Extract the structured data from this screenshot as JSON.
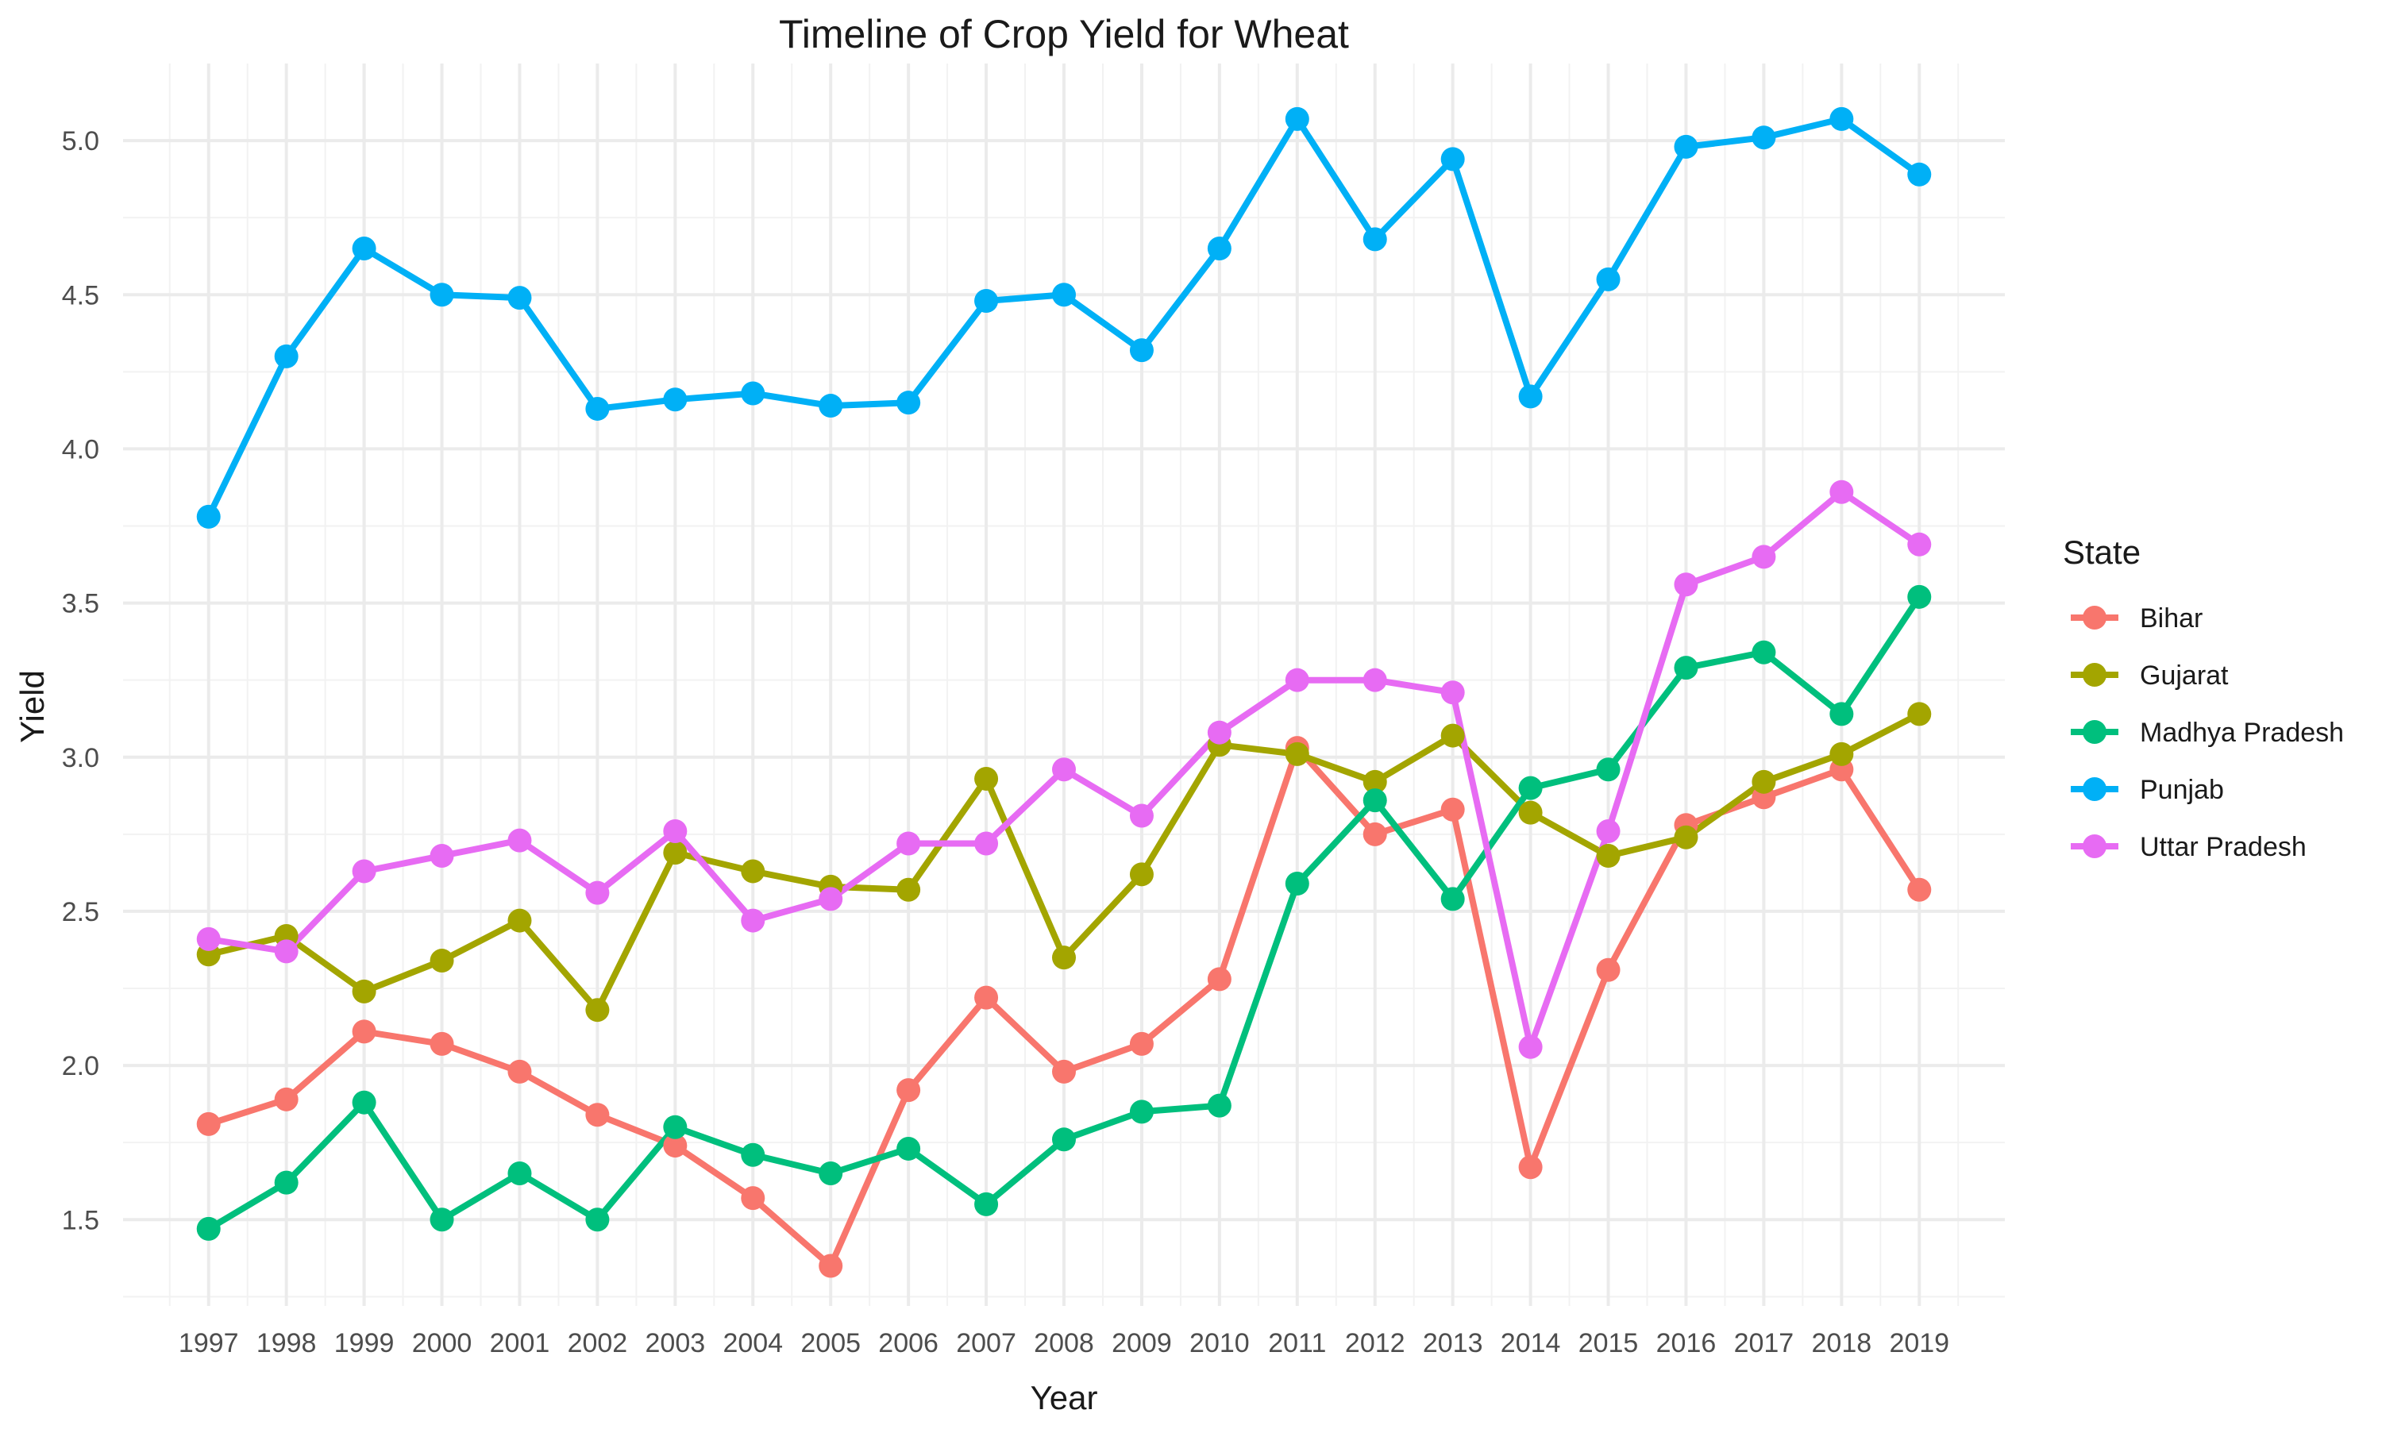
{
  "chart_data": {
    "type": "line",
    "title": "Timeline of Crop Yield for Wheat",
    "xlabel": "Year",
    "ylabel": "Yield",
    "legend_title": "State",
    "legend_position": "right",
    "grid": true,
    "x": [
      1997,
      1998,
      1999,
      2000,
      2001,
      2002,
      2003,
      2004,
      2005,
      2006,
      2007,
      2008,
      2009,
      2010,
      2011,
      2012,
      2013,
      2014,
      2015,
      2016,
      2017,
      2018,
      2019
    ],
    "x_tick_labels": [
      "1997",
      "1998",
      "1999",
      "2000",
      "2001",
      "2002",
      "2003",
      "2004",
      "2005",
      "2006",
      "2007",
      "2008",
      "2009",
      "2010",
      "2011",
      "2012",
      "2013",
      "2014",
      "2015",
      "2016",
      "2017",
      "2018",
      "2019"
    ],
    "xlim": [
      1995.9,
      2020.1
    ],
    "ylim": [
      1.22,
      5.25
    ],
    "y_ticks": [
      1.5,
      2.0,
      2.5,
      3.0,
      3.5,
      4.0,
      4.5,
      5.0
    ],
    "y_tick_labels": [
      "1.5",
      "2.0",
      "2.5",
      "3.0",
      "3.5",
      "4.0",
      "4.5",
      "5.0"
    ],
    "series": [
      {
        "name": "Bihar",
        "color": "#F8766D",
        "values": [
          1.81,
          1.89,
          2.11,
          2.07,
          1.98,
          1.84,
          1.74,
          1.57,
          1.35,
          1.92,
          2.22,
          1.98,
          2.07,
          2.28,
          3.03,
          2.75,
          2.83,
          1.67,
          2.31,
          2.78,
          2.87,
          2.96,
          2.57
        ]
      },
      {
        "name": "Gujarat",
        "color": "#A3A500",
        "values": [
          2.36,
          2.42,
          2.24,
          2.34,
          2.47,
          2.18,
          2.69,
          2.63,
          2.58,
          2.57,
          2.93,
          2.35,
          2.62,
          3.04,
          3.01,
          2.92,
          3.07,
          2.82,
          2.68,
          2.74,
          2.92,
          3.01,
          3.14
        ]
      },
      {
        "name": "Madhya Pradesh",
        "color": "#00BF7D",
        "values": [
          1.47,
          1.62,
          1.88,
          1.5,
          1.65,
          1.5,
          1.8,
          1.71,
          1.65,
          1.73,
          1.55,
          1.76,
          1.85,
          1.87,
          2.59,
          2.86,
          2.54,
          2.9,
          2.96,
          3.29,
          3.34,
          3.14,
          3.52
        ]
      },
      {
        "name": "Punjab",
        "color": "#00B0F6",
        "values": [
          3.78,
          4.3,
          4.65,
          4.5,
          4.49,
          4.13,
          4.16,
          4.18,
          4.14,
          4.15,
          4.48,
          4.5,
          4.32,
          4.65,
          5.07,
          4.68,
          4.94,
          4.17,
          4.55,
          4.98,
          5.01,
          5.07,
          4.89
        ]
      },
      {
        "name": "Uttar Pradesh",
        "color": "#E76BF3",
        "values": [
          2.41,
          2.37,
          2.63,
          2.68,
          2.73,
          2.56,
          2.76,
          2.47,
          2.54,
          2.72,
          2.72,
          2.96,
          2.81,
          3.08,
          3.25,
          3.25,
          3.21,
          2.06,
          2.76,
          3.56,
          3.65,
          3.86,
          3.69
        ]
      }
    ]
  }
}
